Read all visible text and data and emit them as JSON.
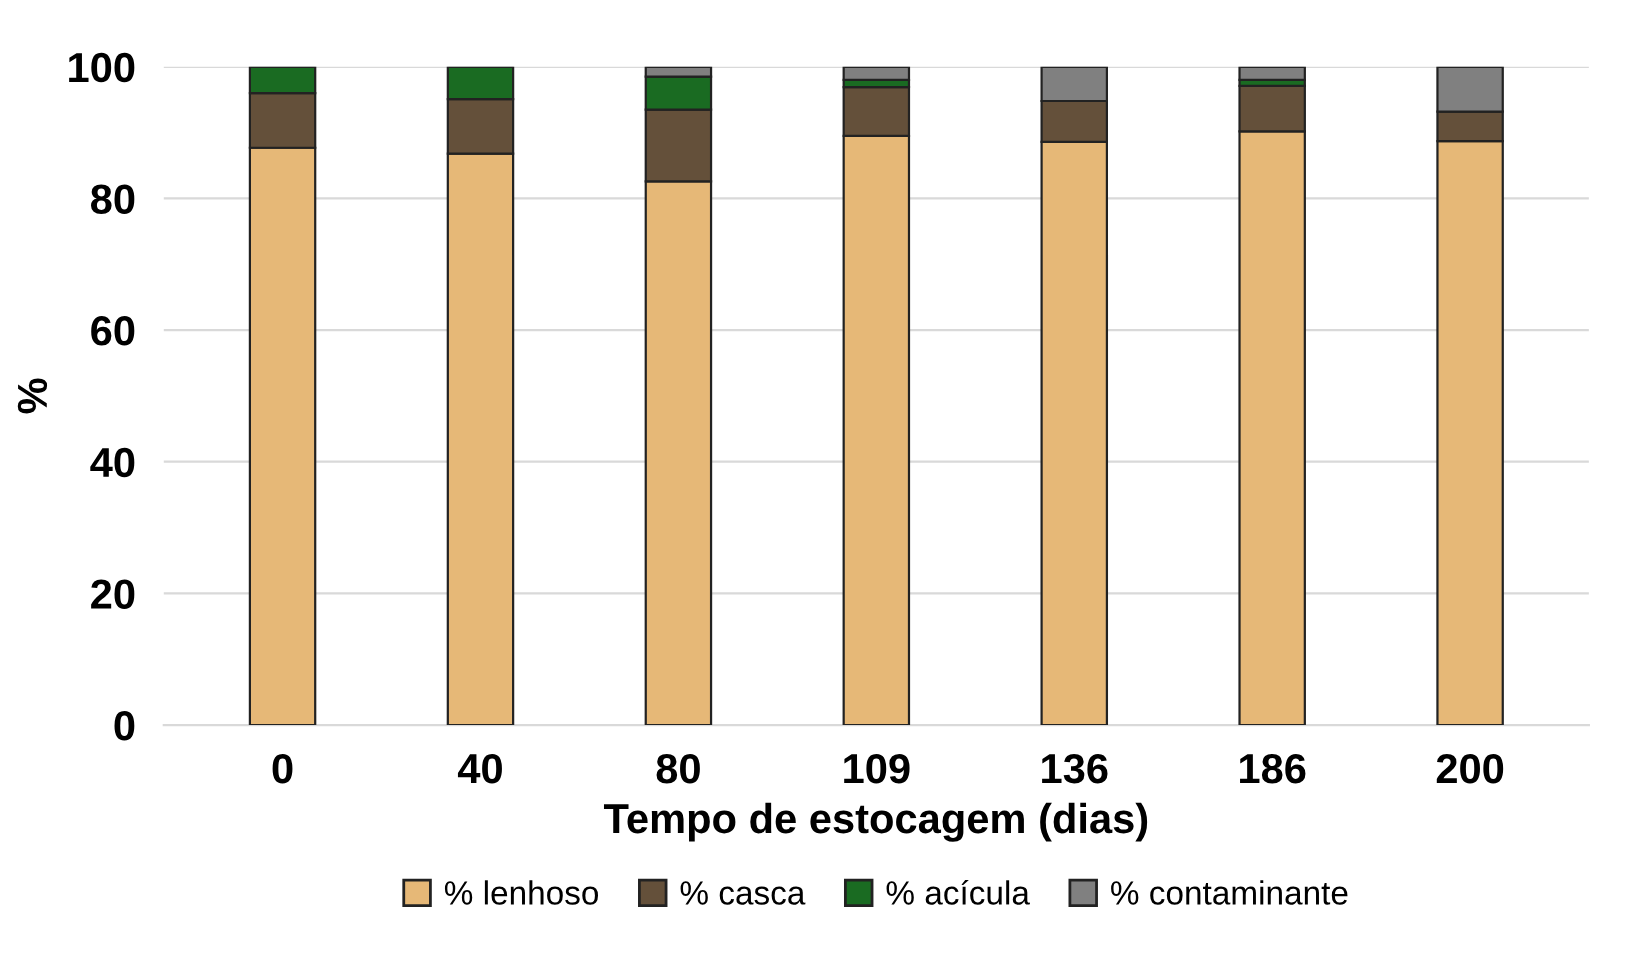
{
  "chart_data": {
    "type": "bar",
    "stacked": true,
    "xlabel": "Tempo de estocagem (dias)",
    "ylabel": "%",
    "categories": [
      "0",
      "40",
      "80",
      "109",
      "136",
      "186",
      "200"
    ],
    "series": [
      {
        "name": "% lenhoso",
        "color": "#e6b877",
        "values": [
          87.7,
          86.8,
          82.6,
          89.5,
          88.6,
          90.2,
          88.7
        ]
      },
      {
        "name": "% casca",
        "color": "#64503a",
        "values": [
          8.3,
          8.3,
          10.9,
          7.4,
          6.2,
          6.9,
          4.5
        ]
      },
      {
        "name": "% acícula",
        "color": "#1a6b22",
        "values": [
          4.0,
          4.9,
          5.0,
          1.1,
          null,
          0.9,
          null
        ]
      },
      {
        "name": "% contaminante",
        "color": "#808080",
        "values": [
          null,
          null,
          1.5,
          2.0,
          5.2,
          2.0,
          6.8
        ]
      }
    ],
    "ylim": [
      0,
      100
    ],
    "yticks": [
      0,
      20,
      40,
      60,
      80,
      100
    ],
    "grid": "y",
    "legend": "bottom"
  }
}
